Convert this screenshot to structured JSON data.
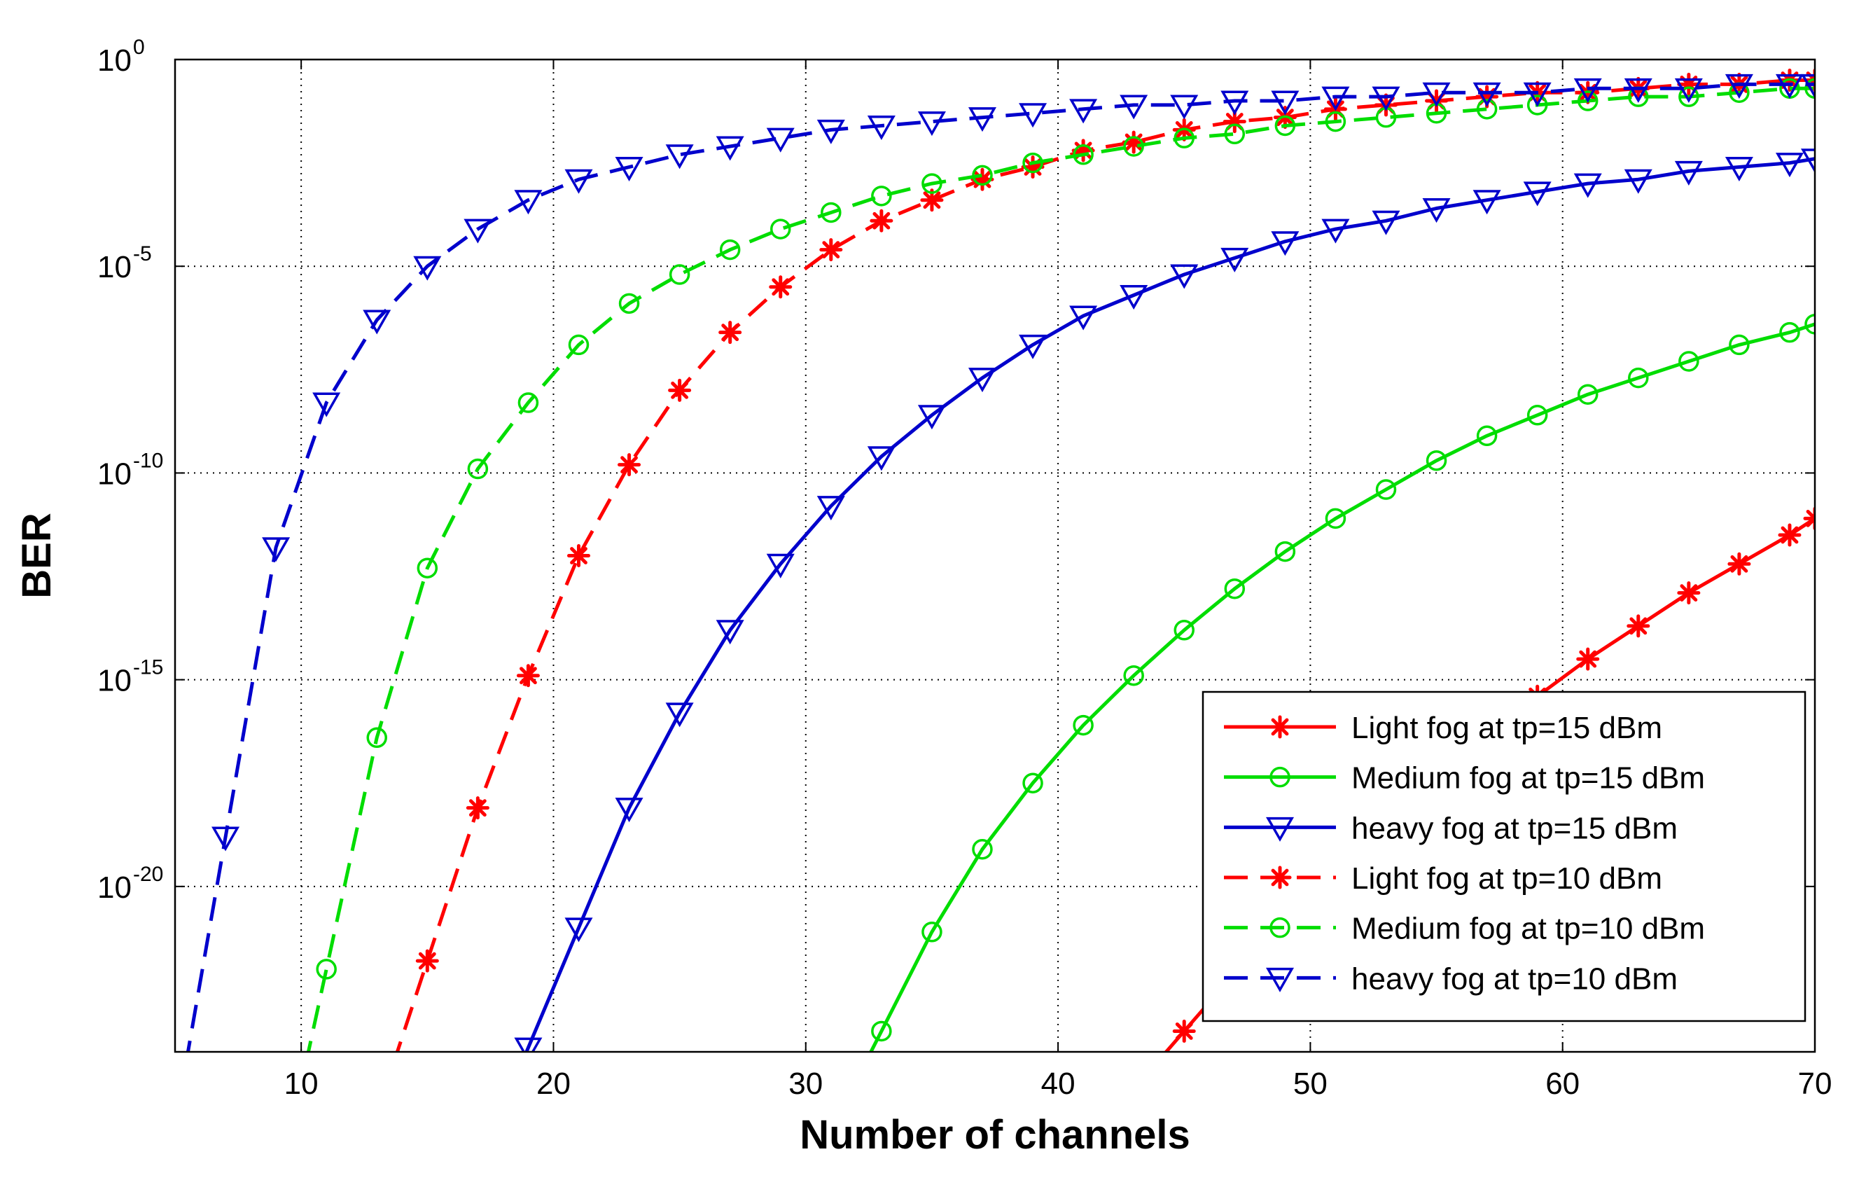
{
  "chart_data": {
    "type": "line",
    "title": "",
    "xlabel": "Number of channels",
    "ylabel": "BER",
    "y_scale": "log",
    "xlim": [
      5,
      70
    ],
    "ylim": [
      1e-24,
      1
    ],
    "grid": true,
    "legend_position": "bottom-right",
    "x_ticks": [
      "10",
      "20",
      "30",
      "40",
      "50",
      "60",
      "70"
    ],
    "y_ticks": [
      {
        "base": "10",
        "exp": "0"
      },
      {
        "base": "10",
        "exp": "-5"
      },
      {
        "base": "10",
        "exp": "-10"
      },
      {
        "base": "10",
        "exp": "-15"
      },
      {
        "base": "10",
        "exp": "-20"
      }
    ],
    "series": [
      {
        "name": "Light fog at tp=15 dBm",
        "color": "#ff0000",
        "dash": "solid",
        "marker": "star",
        "x": [
          45,
          47,
          49,
          51,
          53,
          55,
          57,
          59,
          61,
          63,
          65,
          67,
          69,
          70
        ],
        "log10_y": [
          -23.5,
          -22.1,
          -20.9,
          -19.6,
          -18.5,
          -17.4,
          -16.3,
          -15.4,
          -14.5,
          -13.7,
          -12.9,
          -12.2,
          -11.5,
          -11.1
        ]
      },
      {
        "name": "Medium fog at tp=15 dBm",
        "color": "#00dd00",
        "dash": "solid",
        "marker": "circle",
        "x": [
          33,
          35,
          37,
          39,
          41,
          43,
          45,
          47,
          49,
          51,
          53,
          55,
          57,
          59,
          61,
          63,
          65,
          67,
          69,
          70
        ],
        "log10_y": [
          -23.5,
          -21.1,
          -19.1,
          -17.5,
          -16.1,
          -14.9,
          -13.8,
          -12.8,
          -11.9,
          -11.1,
          -10.4,
          -9.7,
          -9.1,
          -8.6,
          -8.1,
          -7.7,
          -7.3,
          -6.9,
          -6.6,
          -6.4
        ]
      },
      {
        "name": "heavy fog at tp=15 dBm",
        "color": "#0000cc",
        "dash": "solid",
        "marker": "triangle-down",
        "x": [
          19,
          21,
          23,
          25,
          27,
          29,
          31,
          33,
          35,
          37,
          39,
          41,
          43,
          45,
          47,
          49,
          51,
          53,
          55,
          57,
          59,
          61,
          63,
          65,
          67,
          69,
          70
        ],
        "log10_y": [
          -23.9,
          -21.0,
          -18.1,
          -15.8,
          -13.8,
          -12.2,
          -10.8,
          -9.6,
          -8.6,
          -7.7,
          -6.9,
          -6.2,
          -5.7,
          -5.2,
          -4.8,
          -4.4,
          -4.1,
          -3.9,
          -3.6,
          -3.4,
          -3.2,
          -3.0,
          -2.9,
          -2.7,
          -2.6,
          -2.5,
          -2.4
        ]
      },
      {
        "name": "Light fog at tp=10 dBm",
        "color": "#ff0000",
        "dash": "dashed",
        "marker": "star",
        "x": [
          15,
          17,
          19,
          21,
          23,
          25,
          27,
          29,
          31,
          33,
          35,
          37,
          39,
          41,
          43,
          45,
          47,
          49,
          51,
          53,
          55,
          57,
          59,
          61,
          63,
          65,
          67,
          69,
          70
        ],
        "log10_y": [
          -21.8,
          -18.1,
          -14.9,
          -12.0,
          -9.8,
          -8.0,
          -6.6,
          -5.5,
          -4.6,
          -3.9,
          -3.4,
          -2.9,
          -2.6,
          -2.2,
          -2.0,
          -1.7,
          -1.5,
          -1.4,
          -1.2,
          -1.1,
          -1.0,
          -0.9,
          -0.8,
          -0.8,
          -0.7,
          -0.6,
          -0.6,
          -0.5,
          -0.5
        ]
      },
      {
        "name": "Medium fog at tp=10 dBm",
        "color": "#00dd00",
        "dash": "dashed",
        "marker": "circle",
        "x": [
          11,
          13,
          15,
          17,
          19,
          21,
          23,
          25,
          27,
          29,
          31,
          33,
          35,
          37,
          39,
          41,
          43,
          45,
          47,
          49,
          51,
          53,
          55,
          57,
          59,
          61,
          63,
          65,
          67,
          69,
          70
        ],
        "log10_y": [
          -22.0,
          -16.4,
          -12.3,
          -9.9,
          -8.3,
          -6.9,
          -5.9,
          -5.2,
          -4.6,
          -4.1,
          -3.7,
          -3.3,
          -3.0,
          -2.8,
          -2.5,
          -2.3,
          -2.1,
          -1.9,
          -1.8,
          -1.6,
          -1.5,
          -1.4,
          -1.3,
          -1.2,
          -1.1,
          -1.0,
          -0.9,
          -0.9,
          -0.8,
          -0.7,
          -0.7
        ]
      },
      {
        "name": "heavy fog at tp=10 dBm",
        "color": "#0000cc",
        "dash": "dashed",
        "marker": "triangle-down",
        "x": [
          7,
          9,
          11,
          13,
          15,
          17,
          19,
          21,
          23,
          25,
          27,
          29,
          31,
          33,
          35,
          37,
          39,
          41,
          43,
          45,
          47,
          49,
          51,
          53,
          55,
          57,
          59,
          61,
          63,
          65,
          67,
          69,
          70
        ],
        "log10_y": [
          -18.8,
          -11.8,
          -8.3,
          -6.3,
          -5.0,
          -4.1,
          -3.4,
          -2.9,
          -2.6,
          -2.3,
          -2.1,
          -1.9,
          -1.7,
          -1.6,
          -1.5,
          -1.4,
          -1.3,
          -1.2,
          -1.1,
          -1.1,
          -1.0,
          -1.0,
          -0.9,
          -0.9,
          -0.8,
          -0.8,
          -0.8,
          -0.7,
          -0.7,
          -0.7,
          -0.6,
          -0.6,
          -0.6
        ]
      }
    ]
  }
}
